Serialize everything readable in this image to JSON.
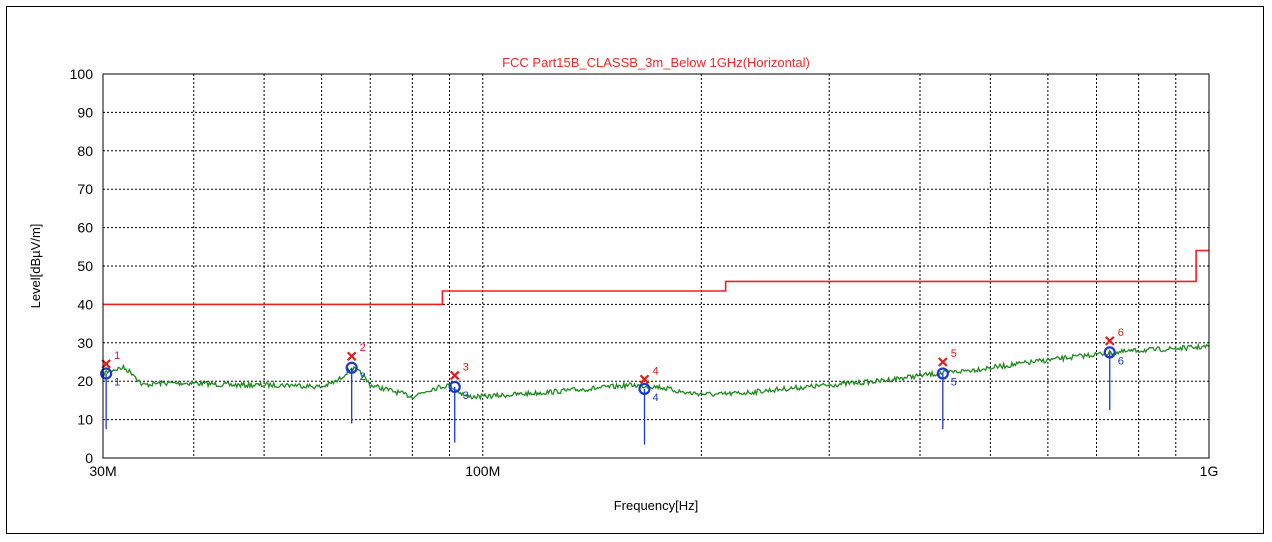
{
  "chart_data": {
    "type": "line",
    "title": "FCC Part15B_CLASSB_3m_Below 1GHz(Horizontal)",
    "xlabel": "Frequency[Hz]",
    "ylabel": "Level[dBµV/m]",
    "x_scale": "log",
    "xlim": [
      30000000,
      1000000000
    ],
    "ylim": [
      0,
      100
    ],
    "y_ticks": [
      "0",
      "10",
      "20",
      "30",
      "40",
      "50",
      "60",
      "70",
      "80",
      "90",
      "100"
    ],
    "x_tick_labels": [
      {
        "value": 30000000,
        "label": "30M"
      },
      {
        "value": 100000000,
        "label": "100M"
      },
      {
        "value": 1000000000,
        "label": "1G"
      }
    ],
    "grid": true,
    "colors": {
      "limit": "#ee2020",
      "trace": "#1f8a1f",
      "qp": "#1c36d6",
      "peak": "#e21b1b"
    },
    "limit_line": [
      {
        "x": 30000000,
        "y": 40
      },
      {
        "x": 88000000,
        "y": 40
      },
      {
        "x": 88000000,
        "y": 43.5
      },
      {
        "x": 216000000,
        "y": 43.5
      },
      {
        "x": 216000000,
        "y": 46
      },
      {
        "x": 960000000,
        "y": 46
      },
      {
        "x": 960000000,
        "y": 54
      },
      {
        "x": 1000000000,
        "y": 54
      }
    ],
    "trace": [
      {
        "x": 30000000,
        "y": 22
      },
      {
        "x": 31000000,
        "y": 23
      },
      {
        "x": 32000000,
        "y": 23.5
      },
      {
        "x": 33000000,
        "y": 22
      },
      {
        "x": 34000000,
        "y": 19
      },
      {
        "x": 36000000,
        "y": 19.5
      },
      {
        "x": 40000000,
        "y": 19.5
      },
      {
        "x": 45000000,
        "y": 19
      },
      {
        "x": 50000000,
        "y": 19
      },
      {
        "x": 55000000,
        "y": 19
      },
      {
        "x": 60000000,
        "y": 18.5
      },
      {
        "x": 63000000,
        "y": 20
      },
      {
        "x": 66000000,
        "y": 23.5
      },
      {
        "x": 68000000,
        "y": 22
      },
      {
        "x": 70000000,
        "y": 19
      },
      {
        "x": 75000000,
        "y": 17.5
      },
      {
        "x": 80000000,
        "y": 16
      },
      {
        "x": 85000000,
        "y": 18
      },
      {
        "x": 90000000,
        "y": 19
      },
      {
        "x": 95000000,
        "y": 16
      },
      {
        "x": 100000000,
        "y": 16
      },
      {
        "x": 110000000,
        "y": 16.5
      },
      {
        "x": 120000000,
        "y": 17
      },
      {
        "x": 140000000,
        "y": 18
      },
      {
        "x": 160000000,
        "y": 19
      },
      {
        "x": 175000000,
        "y": 18.5
      },
      {
        "x": 190000000,
        "y": 17
      },
      {
        "x": 210000000,
        "y": 16.5
      },
      {
        "x": 230000000,
        "y": 17
      },
      {
        "x": 260000000,
        "y": 18
      },
      {
        "x": 300000000,
        "y": 19
      },
      {
        "x": 350000000,
        "y": 20
      },
      {
        "x": 400000000,
        "y": 21.5
      },
      {
        "x": 450000000,
        "y": 22.5
      },
      {
        "x": 500000000,
        "y": 23.5
      },
      {
        "x": 600000000,
        "y": 25.5
      },
      {
        "x": 700000000,
        "y": 27
      },
      {
        "x": 800000000,
        "y": 28
      },
      {
        "x": 900000000,
        "y": 28.5
      },
      {
        "x": 1000000000,
        "y": 29
      }
    ],
    "markers": [
      {
        "label": "1",
        "x": 30300000,
        "peak": 24.5,
        "qp": 22,
        "stem_bottom": 7.5
      },
      {
        "label": "2",
        "x": 66000000,
        "peak": 26.5,
        "qp": 23.5,
        "stem_bottom": 9
      },
      {
        "label": "3",
        "x": 91500000,
        "peak": 21.5,
        "qp": 18.5,
        "stem_bottom": 4
      },
      {
        "label": "4",
        "x": 167000000,
        "peak": 20.5,
        "qp": 18,
        "stem_bottom": 3.5
      },
      {
        "label": "5",
        "x": 430000000,
        "peak": 25,
        "qp": 22,
        "stem_bottom": 7.5
      },
      {
        "label": "6",
        "x": 730000000,
        "peak": 30.5,
        "qp": 27.5,
        "stem_bottom": 12.5
      }
    ]
  }
}
